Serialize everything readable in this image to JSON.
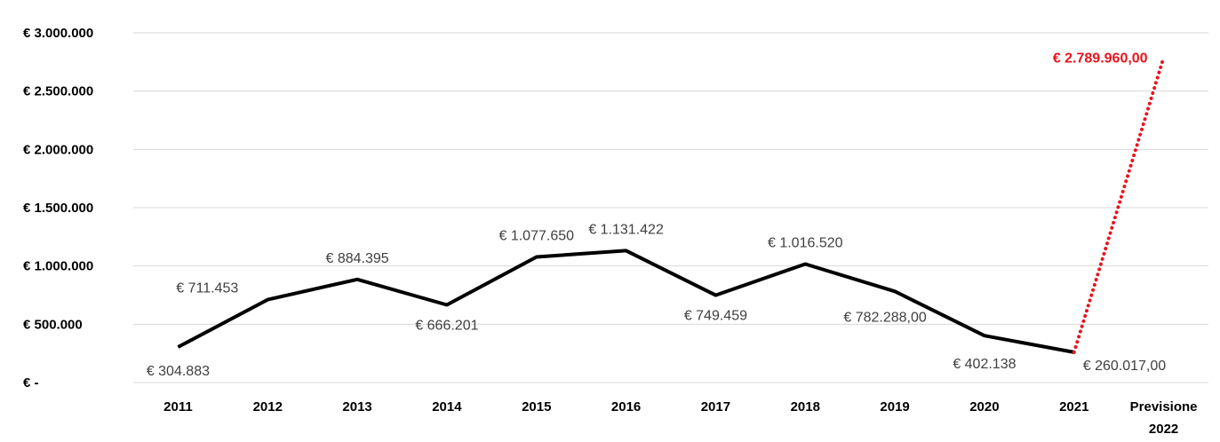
{
  "chart_data": {
    "type": "line",
    "categories": [
      "2011",
      "2012",
      "2013",
      "2014",
      "2015",
      "2016",
      "2017",
      "2018",
      "2019",
      "2020",
      "2021",
      "Previsione 2022"
    ],
    "series": [
      {
        "values": [
          304883,
          711453,
          884395,
          666201,
          1077650,
          1131422,
          749459,
          1016520,
          782288,
          402138,
          260017,
          null
        ],
        "labels": [
          "€ 304.883",
          "€ 711.453",
          "€ 884.395",
          "€ 666.201",
          "€ 1.077.650",
          "€ 1.131.422",
          "€ 749.459",
          "€ 1.016.520",
          "€ 782.288,00",
          "€ 402.138",
          "€ 260.017,00",
          ""
        ],
        "color": "#000000",
        "style": "solid"
      },
      {
        "values": [
          null,
          null,
          null,
          null,
          null,
          null,
          null,
          null,
          null,
          null,
          260017,
          2789960
        ],
        "labels": [
          "",
          "",
          "",
          "",
          "",
          "",
          "",
          "",
          "",
          "",
          "",
          "€ 2.789.960,00"
        ],
        "color": "#e8141e",
        "style": "dotted"
      }
    ],
    "yticks": [
      0,
      500000,
      1000000,
      1500000,
      2000000,
      2500000,
      3000000
    ],
    "ytick_labels": [
      "€ -",
      "€ 500.000",
      "€ 1.000.000",
      "€ 1.500.000",
      "€ 2.000.000",
      "€ 2.500.000",
      "€ 3.000.000"
    ],
    "ylim": [
      0,
      3000000
    ],
    "grid": true,
    "title": "",
    "xlabel": "",
    "ylabel": ""
  }
}
